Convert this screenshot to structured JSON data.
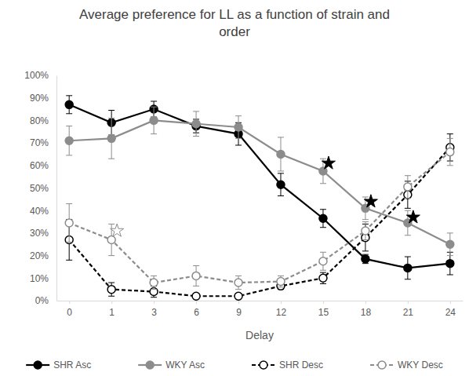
{
  "chart_data": {
    "type": "line",
    "title": "Average preference for LL as a function of strain and order",
    "x_label": "Delay",
    "categories": [
      0,
      1,
      3,
      6,
      9,
      12,
      15,
      18,
      21,
      24
    ],
    "ylim": [
      0,
      100
    ],
    "yticks": [
      {
        "value": 0,
        "label": "0%"
      },
      {
        "value": 10,
        "label": "10%"
      },
      {
        "value": 20,
        "label": "20%"
      },
      {
        "value": 30,
        "label": "30%"
      },
      {
        "value": 40,
        "label": "40%"
      },
      {
        "value": 50,
        "label": "50%"
      },
      {
        "value": 60,
        "label": "60%"
      },
      {
        "value": 70,
        "label": "70%"
      },
      {
        "value": 80,
        "label": "80%"
      },
      {
        "value": 90,
        "label": "90%"
      },
      {
        "value": 100,
        "label": "100%"
      }
    ],
    "grid": false,
    "legend": "bottom",
    "series": [
      {
        "name": "SHR Asc",
        "color": "#000000",
        "line_style": "solid",
        "marker": "circle",
        "values": [
          87,
          79,
          85,
          77.5,
          74,
          51.5,
          36.5,
          18.5,
          14.5,
          16.5
        ],
        "errors": [
          4,
          5.5,
          3.5,
          3,
          5,
          5,
          4,
          2,
          5,
          5
        ]
      },
      {
        "name": "WKY Asc",
        "color": "#8c8c8c",
        "line_style": "solid",
        "marker": "circle",
        "values": [
          71,
          72,
          80,
          78.5,
          77,
          65,
          57.5,
          41,
          34.5,
          25
        ],
        "errors": [
          6.5,
          9,
          6,
          5.5,
          5,
          7.5,
          5.5,
          5,
          5.5,
          5
        ]
      },
      {
        "name": "SHR Desc",
        "color": "#000000",
        "line_style": "dashed",
        "marker": "circle-open",
        "values": [
          27,
          5,
          4,
          2,
          2,
          6.5,
          10,
          28,
          47,
          68
        ],
        "errors": [
          9,
          3,
          2.5,
          0.5,
          0.5,
          1.5,
          2.5,
          6,
          6,
          6
        ]
      },
      {
        "name": "WKY Desc",
        "color": "#8c8c8c",
        "line_style": "dashed",
        "marker": "circle-open",
        "values": [
          34.5,
          27,
          8,
          11,
          8,
          8.5,
          17.5,
          31,
          50.5,
          66
        ],
        "errors": [
          8.5,
          7,
          3,
          4.5,
          3,
          2.5,
          4,
          4,
          5,
          6
        ]
      }
    ],
    "annotations": [
      {
        "x": 1,
        "y": 31,
        "marker": "star-open",
        "color": "#8c8c8c"
      },
      {
        "x": 15,
        "y": 61,
        "marker": "star",
        "color": "#000000"
      },
      {
        "x": 18,
        "y": 44,
        "marker": "star",
        "color": "#000000"
      },
      {
        "x": 21,
        "y": 37,
        "marker": "star",
        "color": "#000000"
      }
    ]
  }
}
